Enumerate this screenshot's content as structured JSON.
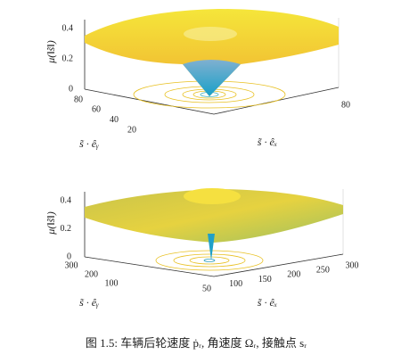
{
  "figures": [
    {
      "zlabel": "μ(‖s̃‖)",
      "xlabel": "s̃ · êₓ",
      "ylabel": "s̃ · êᵧ",
      "zticks": [
        0,
        0.2,
        0.4
      ],
      "yticks": [
        20,
        40,
        60,
        80
      ],
      "xticks": [
        80
      ]
    },
    {
      "zlabel": "μ(‖s̃‖)",
      "xlabel": "s̃ · êₓ",
      "ylabel": "s̃ · êᵧ",
      "zticks": [
        0,
        0.2,
        0.4
      ],
      "yticks": [
        100,
        200,
        300
      ],
      "xticks": [
        50,
        100,
        150,
        200,
        250,
        300
      ]
    }
  ],
  "caption": "图 1.5: 车辆后轮速度 ṗᵣ, 角速度 Ωᵣ, 接触点 sᵣ"
}
